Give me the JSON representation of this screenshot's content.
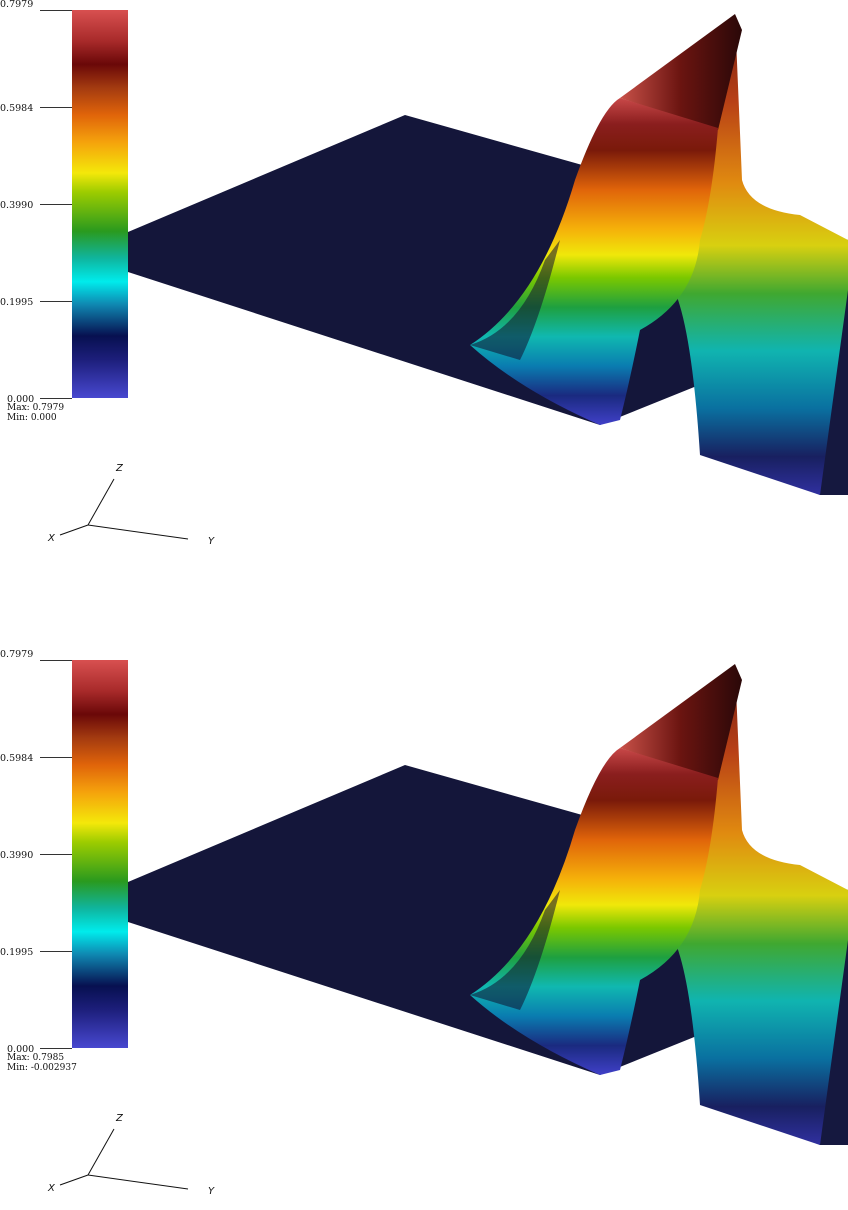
{
  "panels": [
    {
      "colorbar": {
        "ticks": [
          "0.7979",
          "0.5984",
          "0.3990",
          "0.1995",
          "0.000"
        ],
        "max_label": "Max:",
        "max_value": "0.7979",
        "min_label": "Min:",
        "min_value": "0.000"
      },
      "axes": {
        "x": "X",
        "y": "Y",
        "z": "Z"
      }
    },
    {
      "colorbar": {
        "ticks": [
          "0.7979",
          "0.5984",
          "0.3990",
          "0.1995",
          "0.000"
        ],
        "max_label": "Max:",
        "max_value": "0.7985",
        "min_label": "Min:",
        "min_value": "-0.002937"
      },
      "axes": {
        "x": "X",
        "y": "Y",
        "z": "Z"
      }
    }
  ],
  "colors": {
    "plane": "#14163a",
    "plane_edge": "#1c1e4a",
    "colormap": [
      "#4848d0",
      "#071050",
      "#00ecec",
      "#2a9a1e",
      "#f4e80a",
      "#e0640a",
      "#6a0808",
      "#d85050"
    ]
  }
}
